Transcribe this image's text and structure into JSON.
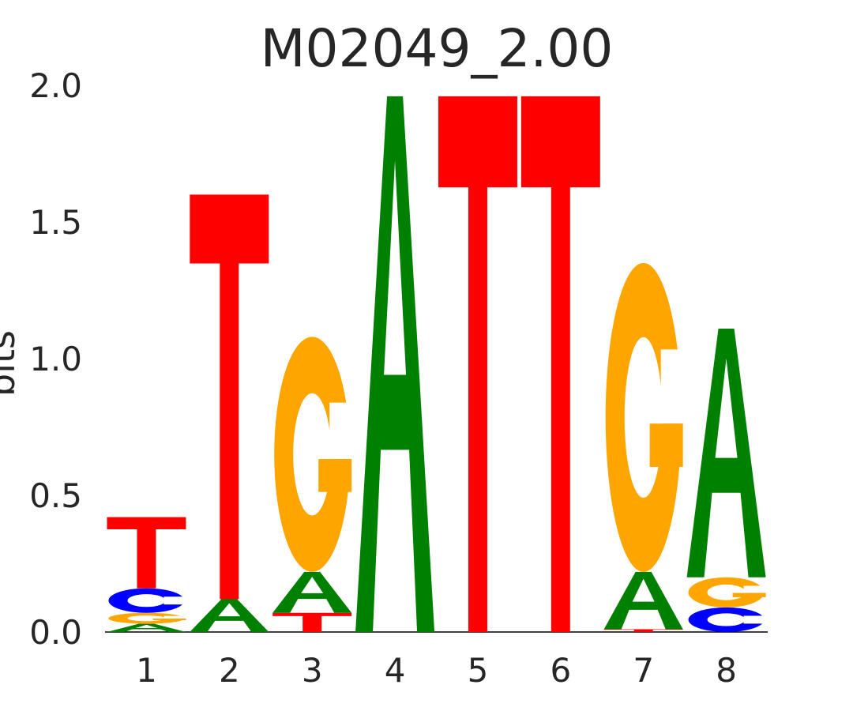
{
  "chart_data": {
    "type": "sequence-logo",
    "title": "M02049_2.00",
    "ylabel": "bits",
    "xlabel": "",
    "ylim": [
      0,
      2.0
    ],
    "yticks": [
      "0.0",
      "0.5",
      "1.0",
      "1.5",
      "2.0"
    ],
    "yticks_values": [
      0,
      0.5,
      1.0,
      1.5,
      2.0
    ],
    "positions": [
      "1",
      "2",
      "3",
      "4",
      "5",
      "6",
      "7",
      "8"
    ],
    "grid": false,
    "colors": {
      "A": "#008000",
      "C": "#0000ff",
      "G": "#ffa500",
      "T": "#ff0000"
    },
    "stacks": [
      [
        {
          "letter": "A",
          "bits": 0.03
        },
        {
          "letter": "G",
          "bits": 0.04
        },
        {
          "letter": "C",
          "bits": 0.09
        },
        {
          "letter": "T",
          "bits": 0.26
        }
      ],
      [
        {
          "letter": "A",
          "bits": 0.12
        },
        {
          "letter": "T",
          "bits": 1.48
        }
      ],
      [
        {
          "letter": "T",
          "bits": 0.07
        },
        {
          "letter": "A",
          "bits": 0.15
        },
        {
          "letter": "G",
          "bits": 0.86
        }
      ],
      [
        {
          "letter": "A",
          "bits": 1.96
        }
      ],
      [
        {
          "letter": "T",
          "bits": 1.96
        }
      ],
      [
        {
          "letter": "T",
          "bits": 1.96
        }
      ],
      [
        {
          "letter": "T",
          "bits": 0.01
        },
        {
          "letter": "A",
          "bits": 0.21
        },
        {
          "letter": "G",
          "bits": 1.13
        }
      ],
      [
        {
          "letter": "C",
          "bits": 0.09
        },
        {
          "letter": "G",
          "bits": 0.11
        },
        {
          "letter": "A",
          "bits": 0.91
        }
      ]
    ]
  }
}
